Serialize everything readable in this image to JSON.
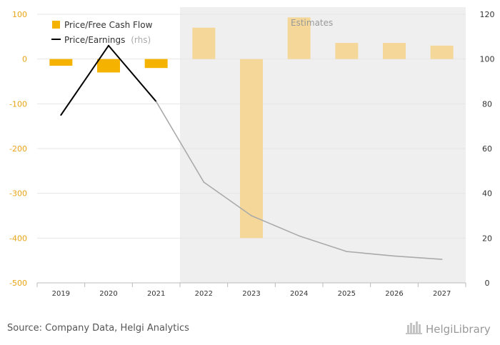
{
  "chart_data": {
    "type": "bar",
    "categories": [
      "2019",
      "2020",
      "2021",
      "2022",
      "2023",
      "2024",
      "2025",
      "2026",
      "2027"
    ],
    "series": [
      {
        "name": "Price/Free Cash Flow",
        "kind": "bar",
        "axis": "left",
        "values": [
          -15,
          -30,
          -20,
          70,
          -400,
          93,
          36,
          36,
          30
        ],
        "estimated": [
          false,
          false,
          false,
          true,
          true,
          true,
          true,
          true,
          true
        ],
        "color": "#f5b300",
        "estimate_color": "#f5d899"
      },
      {
        "name": "Price/Earnings",
        "name_suffix": "(rhs)",
        "kind": "line",
        "axis": "right",
        "values": [
          75,
          106,
          81,
          45,
          30,
          21,
          14,
          12,
          10.5
        ],
        "estimated": [
          false,
          false,
          false,
          true,
          true,
          true,
          true,
          true,
          true
        ],
        "color": "#000000",
        "estimate_color": "#aaaaaa"
      }
    ],
    "y_left": {
      "min": -500,
      "max": 100,
      "ticks": [
        "100",
        "0",
        "-100",
        "-200",
        "-300",
        "-400",
        "-500"
      ]
    },
    "y_right": {
      "min": 0,
      "max": 120,
      "ticks": [
        "120",
        "100",
        "80",
        "60",
        "40",
        "20",
        "0"
      ]
    },
    "estimates_label": "Estimates",
    "estimates_start_index": 3,
    "legend_position": "top-left",
    "grid": true,
    "title": "",
    "xlabel": "",
    "ylabel": ""
  },
  "footer": {
    "source": "Source: Company Data, Helgi Analytics",
    "brand": "HelgiLibrary"
  },
  "colors": {
    "estimate_shade": "#efefef",
    "grid": "#e6e6e6",
    "left_axis_text": "#e8a317"
  }
}
